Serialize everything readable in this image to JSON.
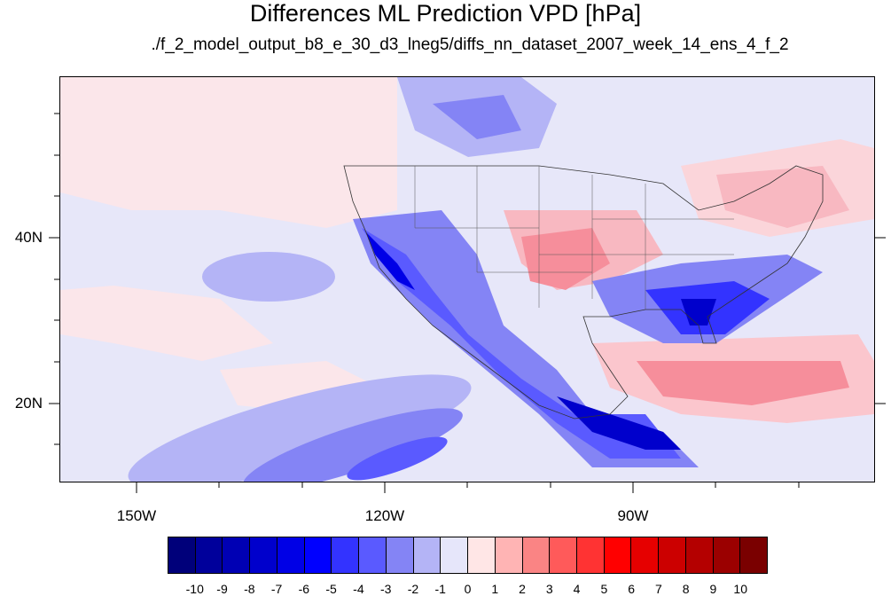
{
  "title": "Differences ML Prediction VPD [hPa]",
  "subtitle": "./f_2_model_output_b8_e_30_d3_lneg5/diffs_nn_dataset_2007_week_14_ens_4_f_2",
  "map": {
    "projection": "cylindrical equidistant",
    "lon_range": [
      -160,
      -61
    ],
    "lat_range": [
      11,
      60
    ],
    "lat_ticks": [
      "40N",
      "20N"
    ],
    "lon_ticks": [
      "150W",
      "120W",
      "90W"
    ],
    "variable": "VPD difference",
    "units": "hPa"
  },
  "colorbar": {
    "labels": [
      "-10",
      "-9",
      "-8",
      "-7",
      "-6",
      "-5",
      "-4",
      "-3",
      "-2",
      "-1",
      "0",
      "1",
      "2",
      "3",
      "4",
      "5",
      "6",
      "7",
      "8",
      "9",
      "10"
    ],
    "colors": [
      "#00007a",
      "#00009b",
      "#0000b4",
      "#0000cc",
      "#0000e6",
      "#0000ff",
      "#3333ff",
      "#5a5aff",
      "#8484f5",
      "#b4b4f6",
      "#e6e6fa",
      "#ffe6e6",
      "#ffb4b4",
      "#fa8484",
      "#ff5a5a",
      "#ff3333",
      "#ff0000",
      "#e60000",
      "#cc0000",
      "#b40000",
      "#9b0000",
      "#7a0000"
    ]
  }
}
